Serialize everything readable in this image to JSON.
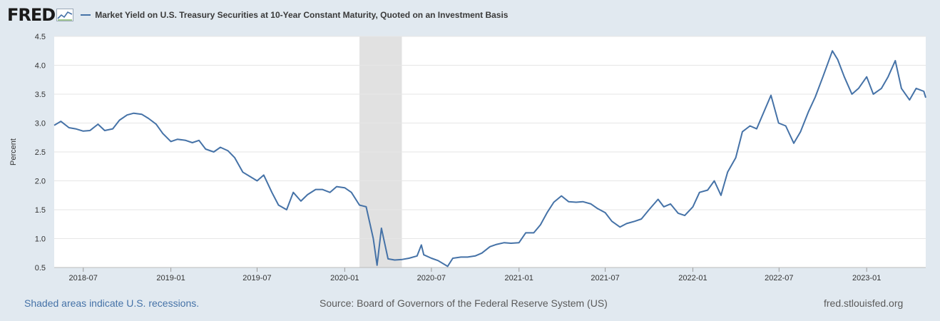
{
  "header": {
    "logo_text": "FRED",
    "series_title": "Market Yield on U.S. Treasury Securities at 10-Year Constant Maturity, Quoted on an Investment Basis"
  },
  "footer": {
    "recession_note": "Shaded areas indicate U.S. recessions.",
    "source": "Source: Board of Governors of the Federal Reserve System (US)",
    "site": "fred.stlouisfed.org"
  },
  "colors": {
    "line": "#4572a7",
    "recession": "#e1e1e1",
    "background": "#e1e9f0",
    "grid": "#e6e6e6"
  },
  "chart_data": {
    "type": "line",
    "title": "Market Yield on U.S. Treasury Securities at 10-Year Constant Maturity, Quoted on an Investment Basis",
    "ylabel": "Percent",
    "xlabel": "",
    "ylim": [
      0.5,
      4.5
    ],
    "y_ticks": [
      "0.5",
      "1.0",
      "1.5",
      "2.0",
      "2.5",
      "3.0",
      "3.5",
      "4.0",
      "4.5"
    ],
    "x_range": [
      "2018-05-01",
      "2023-05-05"
    ],
    "x_ticks": [
      "2018-07",
      "2019-01",
      "2019-07",
      "2020-01",
      "2020-07",
      "2021-01",
      "2021-07",
      "2022-01",
      "2022-07",
      "2023-01"
    ],
    "grid": true,
    "recessions": [
      {
        "start": "2020-02-01",
        "end": "2020-04-30"
      }
    ],
    "series": [
      {
        "name": "Market Yield on U.S. Treasury Securities at 10-Year Constant Maturity, Quoted on an Investment Basis",
        "x": [
          "2018-05-01",
          "2018-05-15",
          "2018-06-01",
          "2018-06-15",
          "2018-07-01",
          "2018-07-15",
          "2018-08-01",
          "2018-08-15",
          "2018-09-01",
          "2018-09-15",
          "2018-10-01",
          "2018-10-15",
          "2018-11-01",
          "2018-11-15",
          "2018-12-01",
          "2018-12-15",
          "2019-01-01",
          "2019-01-15",
          "2019-02-01",
          "2019-02-15",
          "2019-03-01",
          "2019-03-15",
          "2019-04-01",
          "2019-04-15",
          "2019-05-01",
          "2019-05-15",
          "2019-06-01",
          "2019-06-15",
          "2019-07-01",
          "2019-07-15",
          "2019-08-01",
          "2019-08-15",
          "2019-09-01",
          "2019-09-15",
          "2019-10-01",
          "2019-10-15",
          "2019-11-01",
          "2019-11-15",
          "2019-12-01",
          "2019-12-15",
          "2020-01-01",
          "2020-01-15",
          "2020-02-01",
          "2020-02-15",
          "2020-03-01",
          "2020-03-09",
          "2020-03-18",
          "2020-04-01",
          "2020-04-15",
          "2020-05-01",
          "2020-05-15",
          "2020-06-01",
          "2020-06-10",
          "2020-06-15",
          "2020-07-01",
          "2020-07-15",
          "2020-08-04",
          "2020-08-15",
          "2020-09-01",
          "2020-09-15",
          "2020-10-01",
          "2020-10-15",
          "2020-11-01",
          "2020-11-15",
          "2020-12-01",
          "2020-12-15",
          "2021-01-01",
          "2021-01-15",
          "2021-02-01",
          "2021-02-15",
          "2021-03-01",
          "2021-03-15",
          "2021-03-31",
          "2021-04-15",
          "2021-05-01",
          "2021-05-15",
          "2021-06-01",
          "2021-06-15",
          "2021-07-01",
          "2021-07-15",
          "2021-08-01",
          "2021-08-15",
          "2021-09-01",
          "2021-09-15",
          "2021-10-01",
          "2021-10-20",
          "2021-11-01",
          "2021-11-15",
          "2021-12-01",
          "2021-12-15",
          "2022-01-01",
          "2022-01-15",
          "2022-02-01",
          "2022-02-15",
          "2022-03-01",
          "2022-03-15",
          "2022-04-01",
          "2022-04-15",
          "2022-05-01",
          "2022-05-15",
          "2022-06-14",
          "2022-06-30",
          "2022-07-15",
          "2022-08-01",
          "2022-08-15",
          "2022-09-01",
          "2022-09-15",
          "2022-10-01",
          "2022-10-21",
          "2022-11-01",
          "2022-11-15",
          "2022-12-01",
          "2022-12-15",
          "2023-01-01",
          "2023-01-15",
          "2023-02-01",
          "2023-02-15",
          "2023-03-02",
          "2023-03-15",
          "2023-04-01",
          "2023-04-15",
          "2023-05-01",
          "2023-05-05"
        ],
        "values": [
          2.96,
          3.03,
          2.92,
          2.9,
          2.86,
          2.87,
          2.98,
          2.87,
          2.9,
          3.05,
          3.14,
          3.17,
          3.15,
          3.08,
          2.98,
          2.82,
          2.68,
          2.72,
          2.7,
          2.66,
          2.7,
          2.55,
          2.5,
          2.58,
          2.52,
          2.4,
          2.15,
          2.08,
          2.0,
          2.1,
          1.8,
          1.58,
          1.5,
          1.8,
          1.65,
          1.76,
          1.85,
          1.85,
          1.8,
          1.9,
          1.88,
          1.8,
          1.58,
          1.55,
          1.0,
          0.54,
          1.18,
          0.65,
          0.63,
          0.64,
          0.66,
          0.7,
          0.89,
          0.72,
          0.66,
          0.62,
          0.52,
          0.66,
          0.68,
          0.68,
          0.7,
          0.75,
          0.86,
          0.9,
          0.93,
          0.92,
          0.93,
          1.1,
          1.1,
          1.24,
          1.45,
          1.63,
          1.74,
          1.64,
          1.63,
          1.64,
          1.6,
          1.52,
          1.45,
          1.3,
          1.2,
          1.26,
          1.3,
          1.34,
          1.5,
          1.68,
          1.55,
          1.6,
          1.44,
          1.4,
          1.55,
          1.8,
          1.84,
          2.0,
          1.75,
          2.15,
          2.4,
          2.85,
          2.95,
          2.9,
          3.48,
          3.0,
          2.95,
          2.65,
          2.85,
          3.2,
          3.45,
          3.8,
          4.25,
          4.1,
          3.8,
          3.5,
          3.6,
          3.8,
          3.5,
          3.6,
          3.8,
          4.08,
          3.6,
          3.4,
          3.6,
          3.55,
          3.44
        ]
      }
    ]
  }
}
